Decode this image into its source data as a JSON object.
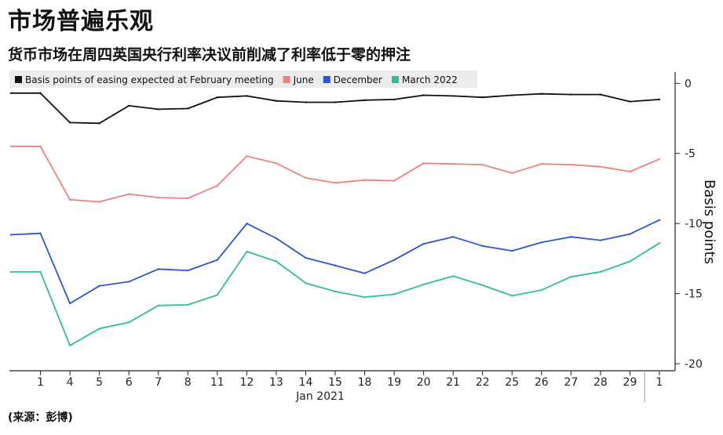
{
  "title": "市场普遍乐观",
  "subtitle": "货币市场在周四英国央行利率决议前削减了利率低于零的押注",
  "source": "(来源：彭博)",
  "chart_data": {
    "type": "line",
    "x": [
      "12-31",
      "1",
      "4",
      "5",
      "6",
      "7",
      "8",
      "11",
      "12",
      "13",
      "14",
      "15",
      "18",
      "19",
      "20",
      "21",
      "22",
      "25",
      "26",
      "27",
      "28",
      "29",
      "Feb 1"
    ],
    "xticks": [
      "1",
      "4",
      "5",
      "6",
      "7",
      "8",
      "11",
      "12",
      "13",
      "14",
      "15",
      "18",
      "19",
      "20",
      "21",
      "22",
      "25",
      "26",
      "27",
      "28",
      "29",
      "1"
    ],
    "xlabel": "Jan 2021",
    "ylabel": "Basis points",
    "ylim": [
      -20.5,
      0.8
    ],
    "yticks": [
      0,
      -5,
      -10,
      -15,
      -20
    ],
    "grid": false,
    "legend_position": "top-left",
    "series": [
      {
        "name": "Basis points of easing expected at February meeting",
        "color": "#111111",
        "values": [
          -0.7,
          -0.7,
          -2.8,
          -2.85,
          -1.6,
          -1.85,
          -1.8,
          -1.0,
          -0.9,
          -1.25,
          -1.35,
          -1.35,
          -1.2,
          -1.15,
          -0.85,
          -0.9,
          -1.0,
          -0.85,
          -0.75,
          -0.8,
          -0.8,
          -1.3,
          -1.15
        ]
      },
      {
        "name": "June",
        "color": "#f08080",
        "values": [
          -4.5,
          -4.5,
          -8.3,
          -8.45,
          -7.9,
          -8.15,
          -8.2,
          -7.3,
          -5.2,
          -5.7,
          -6.75,
          -7.1,
          -6.9,
          -6.95,
          -5.7,
          -5.75,
          -5.8,
          -6.4,
          -5.75,
          -5.8,
          -5.95,
          -6.3,
          -5.4
        ]
      },
      {
        "name": "December",
        "color": "#2a55d4",
        "values": [
          -10.8,
          -10.7,
          -15.7,
          -14.45,
          -14.15,
          -13.25,
          -13.35,
          -12.6,
          -10.0,
          -11.05,
          -12.45,
          -13.0,
          -13.55,
          -12.6,
          -11.45,
          -10.95,
          -11.6,
          -11.95,
          -11.35,
          -10.95,
          -11.2,
          -10.75,
          -9.75
        ]
      },
      {
        "name": "March 2022",
        "color": "#2dbf9a",
        "values": [
          -13.45,
          -13.45,
          -18.7,
          -17.5,
          -17.05,
          -15.85,
          -15.8,
          -15.1,
          -12.0,
          -12.7,
          -14.25,
          -14.85,
          -15.25,
          -15.05,
          -14.35,
          -13.75,
          -14.4,
          -15.15,
          -14.75,
          -13.8,
          -13.45,
          -12.7,
          -11.4
        ]
      }
    ]
  }
}
